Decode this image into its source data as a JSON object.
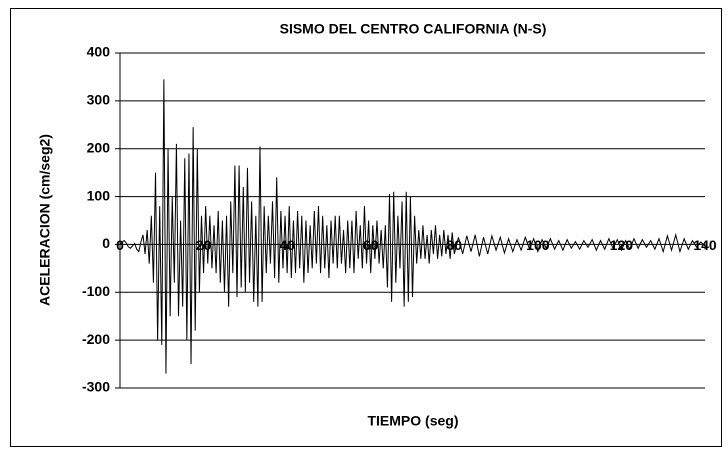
{
  "chart_data": {
    "type": "line",
    "title": "SISMO DEL CENTRO CALIFORNIA (N-S)",
    "x_label": "TIEMPO (seg)",
    "y_label": "ACELERACION (cm/seg2)",
    "x": [
      0,
      0.5,
      1,
      1.5,
      2,
      2.5,
      3,
      3.5,
      4,
      4.5,
      5,
      5.5,
      6,
      6.5,
      7,
      7.5,
      8,
      8.5,
      9,
      9.5,
      10,
      10.5,
      11,
      11.5,
      12,
      12.5,
      13,
      13.5,
      14,
      14.5,
      15,
      15.5,
      16,
      16.5,
      17,
      17.5,
      18,
      18.5,
      19,
      19.5,
      20,
      20.5,
      21,
      21.5,
      22,
      22.5,
      23,
      23.5,
      24,
      24.5,
      25,
      25.5,
      26,
      26.5,
      27,
      27.5,
      28,
      28.5,
      29,
      29.5,
      30,
      30.5,
      31,
      31.5,
      32,
      32.5,
      33,
      33.5,
      34,
      34.5,
      35,
      35.5,
      36,
      36.5,
      37,
      37.5,
      38,
      38.5,
      39,
      39.5,
      40,
      40.5,
      41,
      41.5,
      42,
      42.5,
      43,
      43.5,
      44,
      44.5,
      45,
      45.5,
      46,
      46.5,
      47,
      47.5,
      48,
      48.5,
      49,
      49.5,
      50,
      50.5,
      51,
      51.5,
      52,
      52.5,
      53,
      53.5,
      54,
      54.5,
      55,
      55.5,
      56,
      56.5,
      57,
      57.5,
      58,
      58.5,
      59,
      59.5,
      60,
      60.5,
      61,
      61.5,
      62,
      62.5,
      63,
      63.5,
      64,
      64.5,
      65,
      65.5,
      66,
      66.5,
      67,
      67.5,
      68,
      68.5,
      69,
      69.5,
      70,
      70.5,
      71,
      71.5,
      72,
      72.5,
      73,
      73.5,
      74,
      74.5,
      75,
      75.5,
      76,
      76.5,
      77,
      77.5,
      78,
      78.5,
      79,
      79.5,
      80,
      81,
      82,
      83,
      84,
      85,
      86,
      87,
      88,
      89,
      90,
      91,
      92,
      93,
      94,
      95,
      96,
      97,
      98,
      99,
      100,
      101,
      102,
      103,
      104,
      105,
      106,
      107,
      108,
      109,
      110,
      111,
      112,
      113,
      114,
      115,
      116,
      117,
      118,
      119,
      120,
      121,
      122,
      123,
      124,
      125,
      126,
      127,
      128,
      129,
      130,
      131,
      132,
      133,
      134,
      135,
      136,
      137,
      138,
      139,
      140
    ],
    "series": [
      {
        "name": null,
        "color": "#000000",
        "values": [
          0,
          5,
          8,
          3,
          -5,
          -8,
          -3,
          2,
          -10,
          -15,
          5,
          20,
          -20,
          30,
          -40,
          60,
          -80,
          150,
          -200,
          80,
          -210,
          345,
          -270,
          200,
          -150,
          100,
          -80,
          210,
          -150,
          50,
          -130,
          180,
          -200,
          190,
          -250,
          245,
          -180,
          200,
          -100,
          60,
          -60,
          80,
          -40,
          60,
          -50,
          40,
          -60,
          70,
          -80,
          50,
          -100,
          60,
          -130,
          90,
          -60,
          165,
          -110,
          165,
          -90,
          120,
          -100,
          160,
          -80,
          90,
          -120,
          60,
          -130,
          205,
          -120,
          80,
          -60,
          60,
          -40,
          90,
          -70,
          140,
          -80,
          70,
          -50,
          60,
          -60,
          80,
          -70,
          50,
          -60,
          70,
          -50,
          60,
          -80,
          50,
          -60,
          40,
          -50,
          70,
          -40,
          80,
          -60,
          60,
          -50,
          40,
          -70,
          50,
          -40,
          60,
          -50,
          60,
          -40,
          30,
          -60,
          50,
          -50,
          50,
          -60,
          70,
          -30,
          40,
          -50,
          80,
          -40,
          50,
          -60,
          40,
          -30,
          50,
          -40,
          30,
          -50,
          40,
          -90,
          105,
          -120,
          110,
          -80,
          60,
          -50,
          90,
          -130,
          110,
          -120,
          100,
          -110,
          60,
          -40,
          30,
          -30,
          40,
          -30,
          20,
          -40,
          30,
          -20,
          40,
          -30,
          20,
          -25,
          30,
          -20,
          20,
          -30,
          25,
          -20,
          15,
          -20,
          18,
          -15,
          20,
          -25,
          15,
          -20,
          18,
          -12,
          15,
          -18,
          12,
          -15,
          10,
          -12,
          15,
          -10,
          12,
          -15,
          10,
          -8,
          12,
          -10,
          8,
          -12,
          10,
          -8,
          6,
          -10,
          8,
          -6,
          10,
          -12,
          8,
          -10,
          12,
          -8,
          10,
          -12,
          8,
          -10,
          12,
          -8,
          10,
          -6,
          8,
          -10,
          12,
          -15,
          18,
          -12,
          20,
          -15,
          12,
          -10,
          8,
          -6,
          5,
          -3
        ]
      }
    ],
    "xlim": [
      0,
      140
    ],
    "xticks": [
      0,
      20,
      40,
      60,
      80,
      100,
      120,
      140
    ],
    "ylim": [
      -300,
      400
    ],
    "yticks": [
      -300,
      -200,
      -100,
      0,
      100,
      200,
      300,
      400
    ],
    "grid": true
  }
}
